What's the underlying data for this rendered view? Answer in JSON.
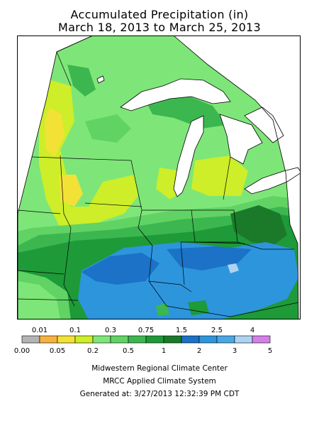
{
  "title": {
    "line1": "Accumulated Precipitation (in)",
    "line2": "March 18, 2013 to March 25, 2013"
  },
  "legend": {
    "colors": [
      "#b3b3b3",
      "#f7b23e",
      "#f2e235",
      "#cdee28",
      "#7ee678",
      "#60d364",
      "#3cb750",
      "#1e9a38",
      "#1a7a2a",
      "#1b72c6",
      "#2d95dc",
      "#4aa7e6",
      "#aed3f2",
      "#d280e8"
    ],
    "upper_labels": [
      "0.01",
      "0.1",
      "0.3",
      "0.75",
      "1.5",
      "2.5",
      "4"
    ],
    "lower_labels": [
      "0.00",
      "0.05",
      "0.2",
      "0.5",
      "1",
      "2",
      "3",
      "5"
    ]
  },
  "credits": {
    "line1": "Midwestern Regional Climate Center",
    "line2": "MRCC Applied Climate System",
    "line3": "Generated at: 3/27/2013 12:32:39 PM CDT"
  },
  "map": {
    "colors": {
      "background": "#ffffff",
      "light_green": "#7ee678",
      "yellow_green": "#cdee28",
      "yellow": "#f2e235",
      "medium_green": "#60d364",
      "green": "#3cb750",
      "dark_green": "#1e9a38",
      "darkest_green": "#1a7a2a",
      "blue": "#2d95dc",
      "dark_blue": "#1b72c6",
      "light_blue": "#aed3f2",
      "lake_white": "#ffffff",
      "boundary": "#000000"
    }
  }
}
